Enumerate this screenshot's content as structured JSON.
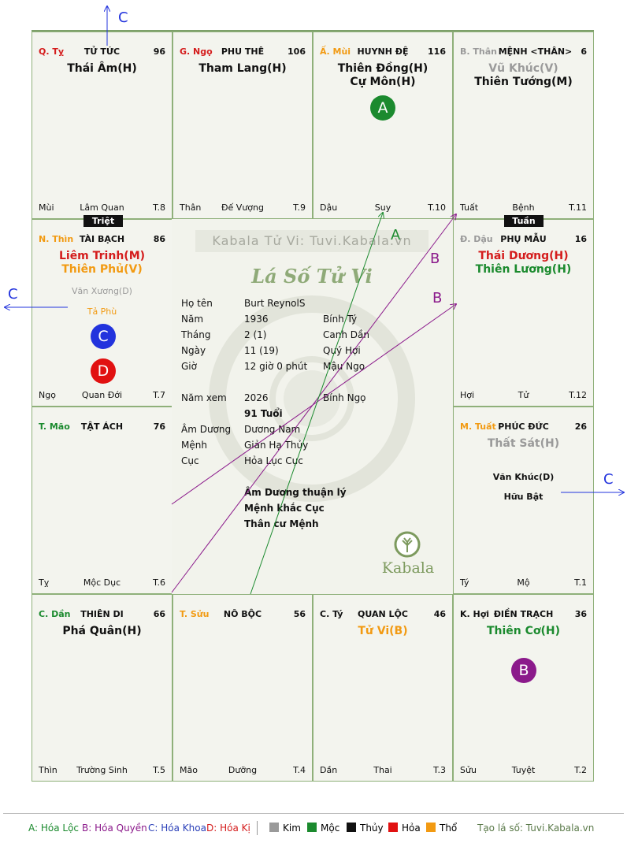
{
  "colors": {
    "fire": "#d41c1c",
    "earth": "#f29a12",
    "wood": "#1b8a2e",
    "metal": "#9a9a9a",
    "water": "#111111",
    "info": "#2a3fb8",
    "hoa_loc": "#1b8a2e",
    "hoa_quyen": "#8b1a8b",
    "hoa_khoa": "#2233dd",
    "hoa_ki": "#e11111"
  },
  "cells": {
    "ty": {
      "pos": "Q. Tỵ",
      "name": "TỬ TỨC",
      "num": "96",
      "major": [
        "Thái Âm(H)"
      ],
      "foot_l": "Mùi",
      "foot_c": "Lâm Quan",
      "foot_r": "T.8"
    },
    "ngo": {
      "pos": "G. Ngọ",
      "name": "PHU THÊ",
      "num": "106",
      "major": [
        "Tham Lang(H)"
      ],
      "foot_l": "Thân",
      "foot_c": "Đế Vượng",
      "foot_r": "T.9"
    },
    "mui": {
      "pos": "Ấ. Mùi",
      "name": "HUYNH ĐỆ",
      "num": "116",
      "major": [
        "Thiên Đồng(H)",
        "Cự Môn(H)"
      ],
      "foot_l": "Dậu",
      "foot_c": "Suy",
      "foot_r": "T.10"
    },
    "than": {
      "pos": "B. Thân",
      "name": "MỆNH <THÂN>",
      "num": "6",
      "major": [
        "Vũ Khúc(V)",
        "Thiên Tướng(M)"
      ],
      "foot_l": "Tuất",
      "foot_c": "Bệnh",
      "foot_r": "T.11"
    },
    "thin": {
      "pos": "N. Thìn",
      "name": "TÀI BẠCH",
      "num": "86",
      "major": [
        "Liêm Trinh(M)",
        "Thiên Phủ(V)"
      ],
      "minor": [
        "Văn Xương(D)",
        "Tả Phù"
      ],
      "foot_l": "Ngọ",
      "foot_c": "Quan Đới",
      "foot_r": "T.7"
    },
    "dau": {
      "pos": "Đ. Dậu",
      "name": "PHỤ MẪU",
      "num": "16",
      "major": [
        "Thái Dương(H)",
        "Thiên Lương(H)"
      ],
      "foot_l": "Hợi",
      "foot_c": "Tử",
      "foot_r": "T.12"
    },
    "mao": {
      "pos": "T. Mão",
      "name": "TẬT ÁCH",
      "num": "76",
      "major": [],
      "foot_l": "Tỵ",
      "foot_c": "Mộc Dục",
      "foot_r": "T.6"
    },
    "tuat": {
      "pos": "M. Tuất",
      "name": "PHÚC ĐỨC",
      "num": "26",
      "major": [
        "Thất Sát(H)"
      ],
      "minor": [
        "Văn Khúc(D)",
        "Hữu Bật"
      ],
      "foot_l": "Tý",
      "foot_c": "Mộ",
      "foot_r": "T.1"
    },
    "dan": {
      "pos": "C. Dần",
      "name": "THIÊN DI",
      "num": "66",
      "major": [
        "Phá Quân(H)"
      ],
      "foot_l": "Thìn",
      "foot_c": "Trường Sinh",
      "foot_r": "T.5"
    },
    "suu": {
      "pos": "T. Sửu",
      "name": "NÔ BỘC",
      "num": "56",
      "major": [],
      "foot_l": "Mão",
      "foot_c": "Dưỡng",
      "foot_r": "T.4"
    },
    "tycell": {
      "pos": "C. Tý",
      "name": "QUAN LỘC",
      "num": "46",
      "major": [
        "Tử Vi(B)"
      ],
      "foot_l": "Dần",
      "foot_c": "Thai",
      "foot_r": "T.3"
    },
    "hoi": {
      "pos": "K. Hợi",
      "name": "ĐIỀN TRẠCH",
      "num": "36",
      "major": [
        "Thiên Cơ(H)"
      ],
      "foot_l": "Sửu",
      "foot_c": "Tuyệt",
      "foot_r": "T.2"
    }
  },
  "tags": {
    "triet": "Triệt",
    "tuan": "Tuần"
  },
  "badges": {
    "a": "A",
    "b": "B",
    "c": "C",
    "d": "D"
  },
  "arrow_labels": {
    "a": "A",
    "b": "B",
    "c": "C"
  },
  "center": {
    "watermark": "Kabala Tử Vi: Tuvi.Kabala.vn",
    "title": "Lá Số Tử Vi",
    "rows": [
      {
        "k": "Họ tên",
        "v": "Burt ReynolS",
        "w": ""
      },
      {
        "k": "Năm",
        "v": "1936",
        "w": "Bính Tý"
      },
      {
        "k": "Tháng",
        "v": "2 (1)",
        "w": "Canh Dần"
      },
      {
        "k": "Ngày",
        "v": "11 (19)",
        "w": "Quý Hợi"
      },
      {
        "k": "Giờ",
        "v": "12 giờ 0 phút",
        "w": "Mậu Ngọ"
      },
      {
        "k": "Năm xem",
        "v": "2026",
        "w": "Bính Ngọ"
      }
    ],
    "age": "91 Tuổi",
    "rows2": [
      {
        "k": "Âm Dương",
        "v": "Dương Nam"
      },
      {
        "k": "Mệnh",
        "v": "Giản Hạ Thủy"
      },
      {
        "k": "Cục",
        "v": "Hỏa Lục Cục"
      }
    ],
    "notes": [
      "Âm Dương thuận lý",
      "Mệnh khắc Cục",
      "Thân cư Mệnh"
    ],
    "logo_text": "Kabala"
  },
  "legend": {
    "a": "A: Hóa Lộc",
    "b": "B: Hóa Quyền",
    "c": "C: Hóa Khoa",
    "d": "D: Hóa Kị",
    "kim": "Kim",
    "moc": "Mộc",
    "thuy": "Thủy",
    "hoa": "Hỏa",
    "tho": "Thổ",
    "site": "Tạo lá số: Tuvi.Kabala.vn"
  }
}
